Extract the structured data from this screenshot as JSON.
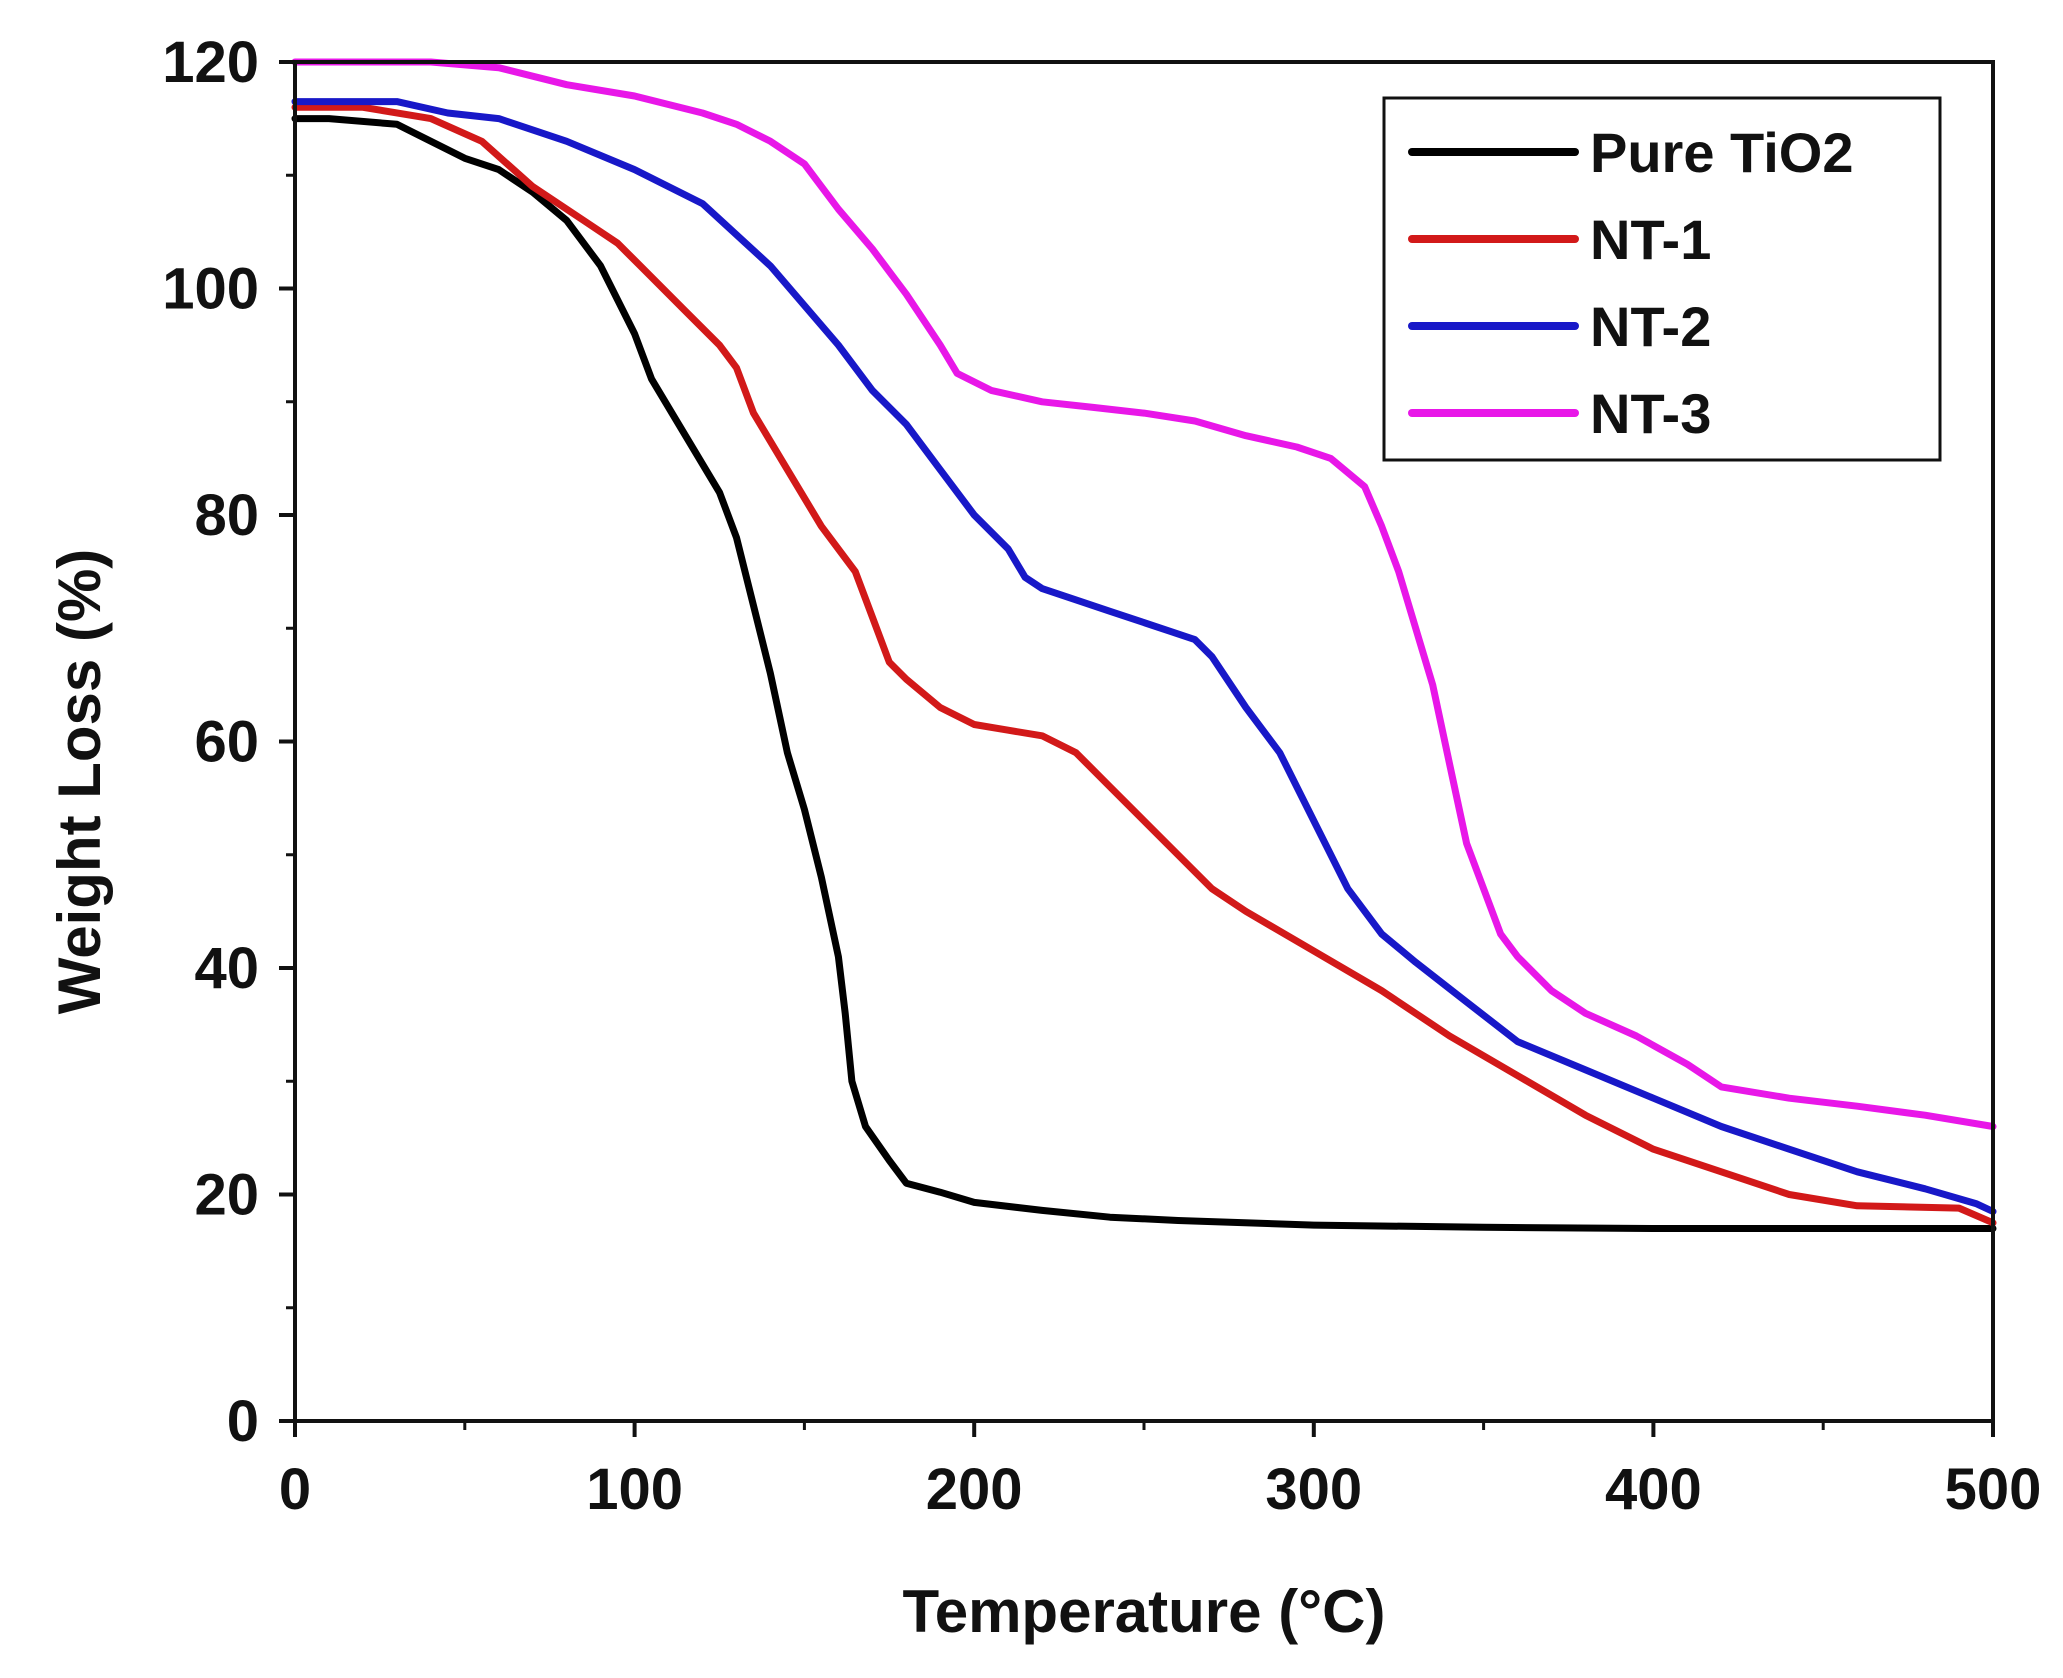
{
  "chart_data": {
    "type": "line",
    "title": "",
    "xlabel": "Temperature (°C)",
    "ylabel": "Weight Loss (%)",
    "xlim": [
      0,
      500
    ],
    "ylim": [
      0,
      120
    ],
    "xticks": [
      0,
      100,
      200,
      300,
      400,
      500
    ],
    "yticks": [
      0,
      20,
      40,
      60,
      80,
      100,
      120
    ],
    "xtick_labels": [
      "0",
      "100",
      "200",
      "300",
      "400",
      "500"
    ],
    "ytick_labels": [
      "0",
      "20",
      "40",
      "60",
      "80",
      "100",
      "120"
    ],
    "x_minor_step": 50,
    "y_minor_step": 10,
    "grid": false,
    "legend_position": "top-right",
    "series": [
      {
        "name": "Pure TiO2",
        "color": "#000000",
        "points": [
          [
            0,
            115
          ],
          [
            10,
            115
          ],
          [
            30,
            114.5
          ],
          [
            40,
            113
          ],
          [
            50,
            111.5
          ],
          [
            60,
            110.5
          ],
          [
            70,
            108.5
          ],
          [
            80,
            106
          ],
          [
            90,
            102
          ],
          [
            100,
            96
          ],
          [
            105,
            92
          ],
          [
            115,
            87
          ],
          [
            125,
            82
          ],
          [
            130,
            78
          ],
          [
            135,
            72
          ],
          [
            140,
            66
          ],
          [
            145,
            59
          ],
          [
            150,
            54
          ],
          [
            155,
            48
          ],
          [
            160,
            41
          ],
          [
            162,
            36
          ],
          [
            164,
            30
          ],
          [
            168,
            26
          ],
          [
            175,
            23
          ],
          [
            180,
            21
          ],
          [
            190,
            20.2
          ],
          [
            200,
            19.3
          ],
          [
            220,
            18.6
          ],
          [
            240,
            18
          ],
          [
            260,
            17.7
          ],
          [
            300,
            17.3
          ],
          [
            350,
            17.1
          ],
          [
            400,
            17
          ],
          [
            450,
            17
          ],
          [
            500,
            17
          ]
        ]
      },
      {
        "name": "NT-1",
        "color": "#d21919",
        "points": [
          [
            0,
            116
          ],
          [
            20,
            116
          ],
          [
            40,
            115
          ],
          [
            55,
            113
          ],
          [
            70,
            109
          ],
          [
            85,
            106
          ],
          [
            95,
            104
          ],
          [
            105,
            101
          ],
          [
            115,
            98
          ],
          [
            125,
            95
          ],
          [
            130,
            93
          ],
          [
            135,
            89
          ],
          [
            145,
            84
          ],
          [
            155,
            79
          ],
          [
            165,
            75
          ],
          [
            170,
            71
          ],
          [
            175,
            67
          ],
          [
            180,
            65.5
          ],
          [
            190,
            63
          ],
          [
            200,
            61.5
          ],
          [
            210,
            61
          ],
          [
            220,
            60.5
          ],
          [
            230,
            59
          ],
          [
            240,
            56
          ],
          [
            250,
            53
          ],
          [
            260,
            50
          ],
          [
            270,
            47
          ],
          [
            280,
            45
          ],
          [
            300,
            41.5
          ],
          [
            320,
            38
          ],
          [
            340,
            34
          ],
          [
            360,
            30.5
          ],
          [
            380,
            27
          ],
          [
            400,
            24
          ],
          [
            420,
            22
          ],
          [
            440,
            20
          ],
          [
            460,
            19
          ],
          [
            490,
            18.8
          ],
          [
            500,
            17.5
          ]
        ]
      },
      {
        "name": "NT-2",
        "color": "#1818c8",
        "points": [
          [
            0,
            116.5
          ],
          [
            30,
            116.5
          ],
          [
            45,
            115.5
          ],
          [
            60,
            115
          ],
          [
            80,
            113
          ],
          [
            100,
            110.5
          ],
          [
            120,
            107.5
          ],
          [
            140,
            102
          ],
          [
            150,
            98.5
          ],
          [
            160,
            95
          ],
          [
            170,
            91
          ],
          [
            180,
            88
          ],
          [
            190,
            84
          ],
          [
            200,
            80
          ],
          [
            210,
            77
          ],
          [
            215,
            74.5
          ],
          [
            220,
            73.5
          ],
          [
            230,
            72.5
          ],
          [
            240,
            71.5
          ],
          [
            250,
            70.5
          ],
          [
            260,
            69.5
          ],
          [
            265,
            69
          ],
          [
            270,
            67.5
          ],
          [
            280,
            63
          ],
          [
            290,
            59
          ],
          [
            300,
            53
          ],
          [
            310,
            47
          ],
          [
            320,
            43
          ],
          [
            330,
            40.5
          ],
          [
            345,
            37
          ],
          [
            360,
            33.5
          ],
          [
            380,
            31
          ],
          [
            400,
            28.5
          ],
          [
            420,
            26
          ],
          [
            440,
            24
          ],
          [
            460,
            22
          ],
          [
            480,
            20.5
          ],
          [
            495,
            19.2
          ],
          [
            500,
            18.5
          ]
        ]
      },
      {
        "name": "NT-3",
        "color": "#e817e8",
        "points": [
          [
            0,
            120
          ],
          [
            40,
            120
          ],
          [
            60,
            119.5
          ],
          [
            80,
            118
          ],
          [
            100,
            117
          ],
          [
            120,
            115.5
          ],
          [
            130,
            114.5
          ],
          [
            140,
            113
          ],
          [
            150,
            111
          ],
          [
            160,
            107
          ],
          [
            170,
            103.5
          ],
          [
            180,
            99.5
          ],
          [
            190,
            95
          ],
          [
            195,
            92.5
          ],
          [
            205,
            91
          ],
          [
            220,
            90
          ],
          [
            235,
            89.5
          ],
          [
            250,
            89
          ],
          [
            265,
            88.3
          ],
          [
            280,
            87
          ],
          [
            295,
            86
          ],
          [
            305,
            85
          ],
          [
            315,
            82.5
          ],
          [
            320,
            79
          ],
          [
            325,
            75
          ],
          [
            330,
            70
          ],
          [
            335,
            65
          ],
          [
            340,
            58
          ],
          [
            345,
            51
          ],
          [
            350,
            47
          ],
          [
            355,
            43
          ],
          [
            360,
            41
          ],
          [
            370,
            38
          ],
          [
            380,
            36
          ],
          [
            395,
            34
          ],
          [
            410,
            31.5
          ],
          [
            420,
            29.5
          ],
          [
            440,
            28.5
          ],
          [
            460,
            27.8
          ],
          [
            480,
            27
          ],
          [
            500,
            26
          ]
        ]
      }
    ]
  }
}
